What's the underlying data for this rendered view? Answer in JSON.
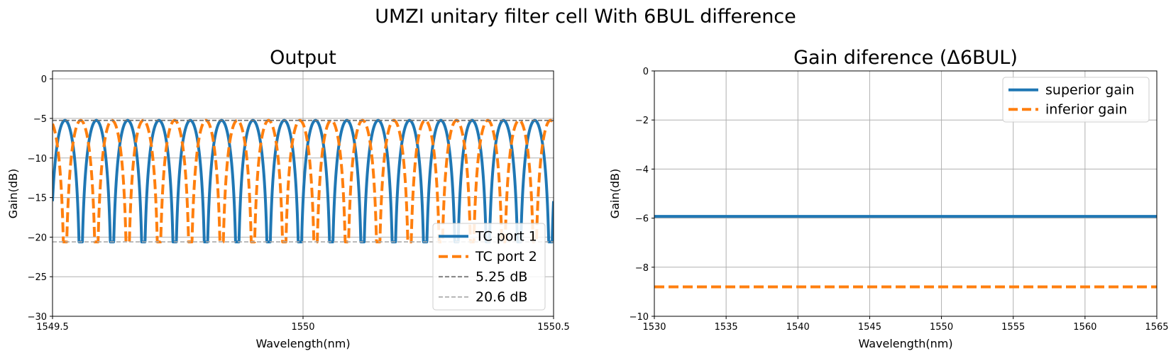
{
  "suptitle": "UMZI unitary filter cell With 6BUL difference",
  "chart_data": [
    {
      "type": "line",
      "title": "Output",
      "xlabel": "Wavelength(nm)",
      "ylabel": "Gain(dB)",
      "xlim": [
        1549.5,
        1550.5
      ],
      "ylim": [
        -30,
        1
      ],
      "xticks": [
        "1549.5",
        "1550",
        "1550.5"
      ],
      "xtick_values": [
        1549.5,
        1550,
        1550.5
      ],
      "yticks": [
        "0",
        "−5",
        "−10",
        "−15",
        "−20",
        "−25",
        "−30"
      ],
      "ytick_values": [
        0,
        -5,
        -10,
        -15,
        -20,
        -25,
        -30
      ],
      "grid": true,
      "legend_position": "lower-right",
      "series": [
        {
          "name": "TC port 1",
          "color": "#1f77b4",
          "style": "solid",
          "kind": "periodic",
          "period": 0.0625,
          "peak_x": 1549.5875,
          "max": -5.25,
          "min": -20.6
        },
        {
          "name": "TC port 2",
          "color": "#ff7f0e",
          "style": "dashed",
          "kind": "periodic",
          "period": 0.0625,
          "peak_x": 1549.55625,
          "max": -5.25,
          "min": -20.6
        },
        {
          "name": "5.25 dB",
          "color": "#707070",
          "style": "dashed-thin",
          "kind": "hline",
          "y": -5.25
        },
        {
          "name": "20.6 dB",
          "color": "#ababab",
          "style": "dashed-thin",
          "kind": "hline",
          "y": -20.6
        }
      ]
    },
    {
      "type": "line",
      "title": "Gain diference (Δ6BUL)",
      "xlabel": "Wavelength(nm)",
      "ylabel": "Gain(dB)",
      "xlim": [
        1530,
        1565
      ],
      "ylim": [
        -10,
        0
      ],
      "xticks": [
        "1530",
        "1535",
        "1540",
        "1545",
        "1550",
        "1555",
        "1560",
        "1565"
      ],
      "xtick_values": [
        1530,
        1535,
        1540,
        1545,
        1550,
        1555,
        1560,
        1565
      ],
      "yticks": [
        "0",
        "−2",
        "−4",
        "−6",
        "−8",
        "−10"
      ],
      "ytick_values": [
        0,
        -2,
        -4,
        -6,
        -8,
        -10
      ],
      "grid": true,
      "legend_position": "upper-right",
      "series": [
        {
          "name": "superior gain",
          "color": "#1f77b4",
          "style": "solid",
          "kind": "hline",
          "y": -5.93
        },
        {
          "name": "inferior gain",
          "color": "#ff7f0e",
          "style": "dashed",
          "kind": "hline",
          "y": -8.8
        }
      ]
    }
  ]
}
